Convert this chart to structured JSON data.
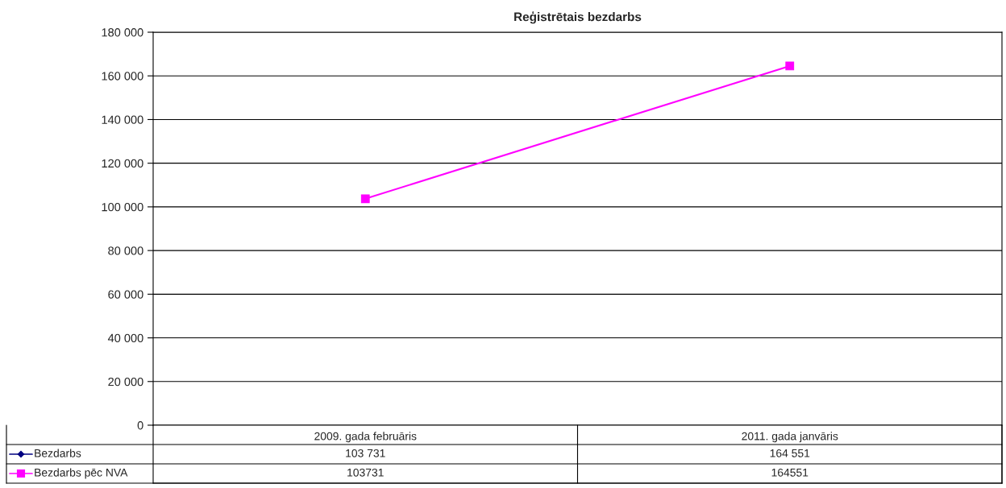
{
  "chart_data": {
    "type": "line",
    "title": "Reģistrētais bezdarbs",
    "categories": [
      "2009. gada februāris",
      "2011. gada janvāris"
    ],
    "series": [
      {
        "name": "Bezdarbs",
        "color": "#000080",
        "marker": "diamond",
        "values": [
          null,
          null
        ],
        "value_labels": [
          "103 731",
          "164 551"
        ]
      },
      {
        "name": "Bezdarbs pēc NVA",
        "color": "#ff00ff",
        "marker": "square",
        "values": [
          103731,
          164551
        ],
        "value_labels": [
          "103731",
          "164551"
        ]
      }
    ],
    "ylim": [
      0,
      180000
    ],
    "yticks": [
      0,
      {
        "value": 20000,
        "label": "20 000"
      },
      {
        "value": 40000,
        "label": "40 000"
      },
      {
        "value": 60000,
        "label": "60 000"
      },
      {
        "value": 80000,
        "label": "80 000"
      },
      {
        "value": 100000,
        "label": "100 000"
      },
      {
        "value": 120000,
        "label": "120 000"
      },
      {
        "value": 140000,
        "label": "140 000"
      },
      {
        "value": 160000,
        "label": "160 000"
      },
      {
        "value": 180000,
        "label": "180 000"
      }
    ],
    "grid": "y",
    "line_style": "solid",
    "legend": "bottom"
  }
}
